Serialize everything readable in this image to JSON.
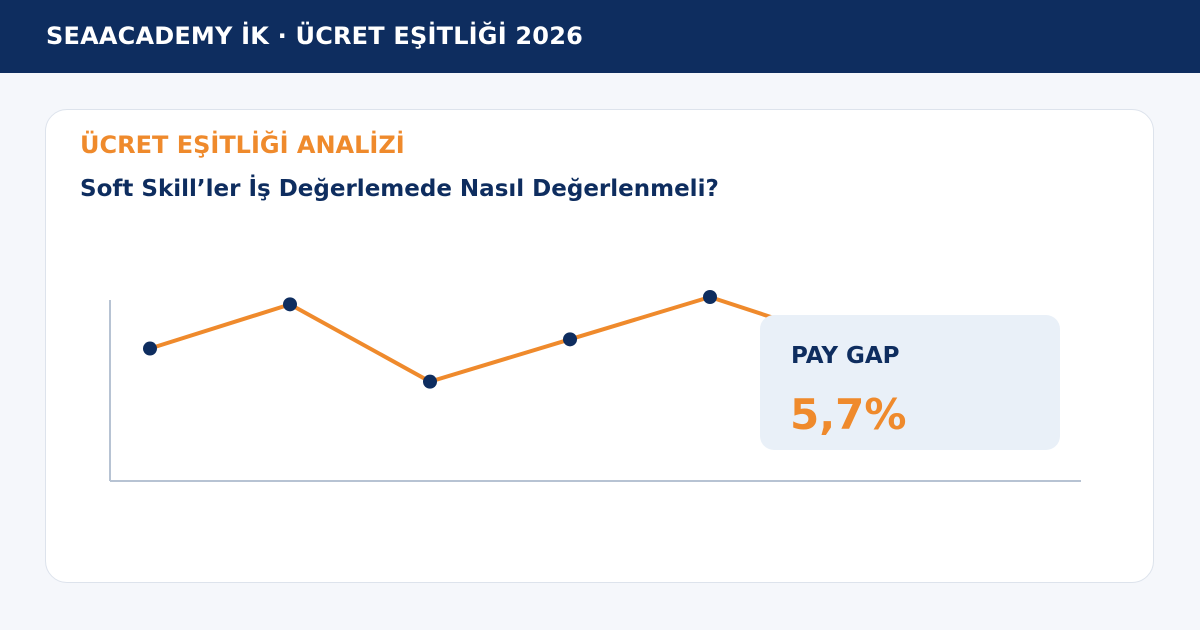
{
  "header": {
    "brand": "SEAACADEMY İK · ÜCRET EŞİTLİĞİ 2026"
  },
  "card": {
    "kicker": "ÜCRET EŞİTLİĞİ ANALİZİ",
    "headline": "Soft Skill’ler İş Değerlemede Nasıl Değerlenmeli?"
  },
  "stat": {
    "label": "PAY GAP",
    "value": "5,7%"
  },
  "colors": {
    "navy": "#0e2d5f",
    "orange": "#ef8a2c",
    "axis": "#b7c3d3",
    "stat_bg": "#e9f0f8"
  },
  "chart_data": {
    "type": "line",
    "title": "",
    "xlabel": "",
    "ylabel": "",
    "x": [
      1,
      2,
      3,
      4,
      5,
      6
    ],
    "ylim": [
      0,
      100
    ],
    "grid": false,
    "series": [
      {
        "values": [
          72,
          96,
          54,
          77,
          100,
          75
        ]
      }
    ],
    "markers_shown_for_first": 5
  }
}
